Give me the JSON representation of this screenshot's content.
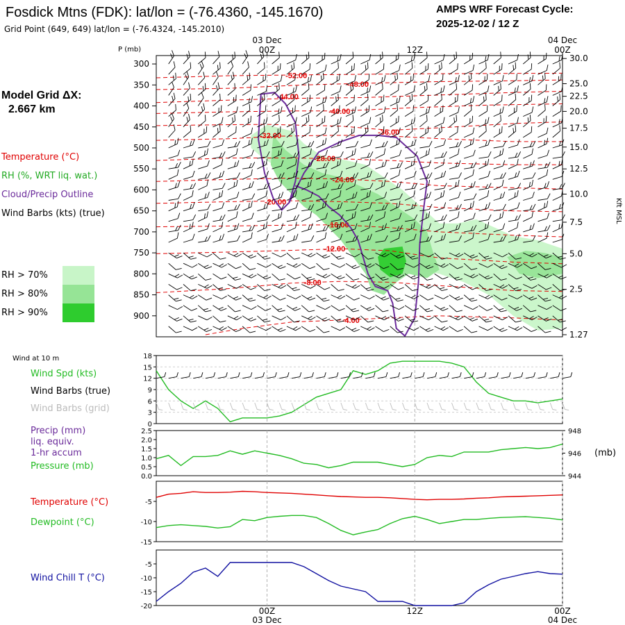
{
  "header": {
    "title": "Fosdick Mtns (FDK):  lat/lon = (-76.4360, -145.1670)",
    "grid_point": "Grid Point (649, 649) lat/lon = (-76.4324, -145.2010)",
    "cycle_line1": "AMPS WRF Forecast Cycle:",
    "cycle_line2": "2025-12-02 / 12  Z"
  },
  "legend": {
    "model_grid_line1": "Model Grid ΔX:",
    "model_grid_line2": "2.667 km",
    "temperature": "Temperature (°C)",
    "rh": "RH (%, WRT liq. wat.)",
    "cloud": "Cloud/Precip Outline",
    "wind_barbs": "Wind Barbs (kts) (true)",
    "rh70": "RH > 70%",
    "rh80": "RH > 80%",
    "rh90": "RH > 90%"
  },
  "colors": {
    "temperature": "#e00000",
    "rh_text": "#22aa22",
    "cloud": "#6a2a9a",
    "rh70": "#c8f5c8",
    "rh80": "#96e496",
    "rh90": "#2ecc2e",
    "wind": "#22bb22",
    "precip_label": "#6a2a9a",
    "pressure": "#22bb22",
    "dewpoint": "#22bb22",
    "windchill": "#1010a0",
    "grid_barbs": "#bbbbbb"
  },
  "time_axis": {
    "top_labels": [
      {
        "day": "03 Dec",
        "hour": "00Z"
      },
      {
        "day": "",
        "hour": "12Z"
      },
      {
        "day": "04 Dec",
        "hour": "00Z"
      }
    ],
    "bottom_labels": [
      {
        "hour": "00Z",
        "day": "03 Dec"
      },
      {
        "hour": "12Z",
        "day": ""
      },
      {
        "hour": "00Z",
        "day": "04 Dec"
      }
    ],
    "label_hours": [
      0,
      12,
      24
    ]
  },
  "chart_data": [
    {
      "type": "line",
      "name": "time-height cross section",
      "title": "Temperature, RH, cloud outline and wind barbs",
      "x_range_hours": [
        -9,
        24
      ],
      "ylabel": "P (mb)",
      "ylim": [
        950,
        280
      ],
      "y_ticks": [
        300,
        350,
        400,
        450,
        500,
        550,
        600,
        650,
        700,
        750,
        800,
        850,
        900
      ],
      "right_axis_label": "Kft MSL",
      "right_ticks": [
        "30.0",
        "25.0",
        "22.5",
        "20.0",
        "17.5",
        "15.0",
        "12.5",
        "10.0",
        "7.5",
        "5.0",
        "2.5",
        "1.27"
      ],
      "right_tick_pressures": [
        287,
        347,
        377,
        413,
        453,
        498,
        550,
        610,
        677,
        752,
        837,
        945
      ],
      "isotherm_labels": [
        {
          "text": "-52.00",
          "h": 1.5,
          "p": 327
        },
        {
          "text": "-48.00",
          "h": 6.5,
          "p": 348
        },
        {
          "text": "-44.00",
          "h": 0.8,
          "p": 378
        },
        {
          "text": "-40.00",
          "h": 5.0,
          "p": 412
        },
        {
          "text": "-36.00",
          "h": 9.0,
          "p": 462
        },
        {
          "text": "-32.00",
          "h": -0.6,
          "p": 470
        },
        {
          "text": "-28.00",
          "h": 3.8,
          "p": 525
        },
        {
          "text": "-24.00",
          "h": 5.3,
          "p": 575
        },
        {
          "text": "-20.00",
          "h": -0.2,
          "p": 628
        },
        {
          "text": "-16.00",
          "h": 4.9,
          "p": 683
        },
        {
          "text": "-12.00",
          "h": 4.6,
          "p": 740
        },
        {
          "text": "-8.00",
          "h": 3.0,
          "p": 820
        },
        {
          "text": "-4.00",
          "h": 6.1,
          "p": 910
        }
      ]
    },
    {
      "type": "line",
      "name": "10 m wind speed",
      "series_label": "Wind Spd (kts)",
      "barbs_label": "Wind Barbs (true)",
      "grid_barbs_label": "Wind Barbs (grid)",
      "panel_label": "Wind at 10 m",
      "ylim": [
        0,
        18
      ],
      "y_ticks": [
        0,
        3,
        6,
        9,
        12,
        15,
        18
      ],
      "x_hours": [
        -9,
        -8,
        -7,
        -6,
        -5,
        -4,
        -3,
        -2,
        -1,
        0,
        1,
        2,
        3,
        4,
        5,
        6,
        7,
        8,
        9,
        10,
        11,
        12,
        13,
        14,
        15,
        16,
        17,
        18,
        19,
        20,
        21,
        22,
        23,
        24
      ],
      "values": [
        14,
        9,
        6,
        4,
        6,
        4,
        0.5,
        1.5,
        1.5,
        1.5,
        2,
        3,
        5,
        7,
        8,
        9,
        14,
        13,
        14,
        16,
        16.5,
        16.5,
        16.5,
        16.5,
        16,
        15,
        11,
        8,
        7,
        6,
        6,
        5.5,
        6,
        6.5
      ]
    },
    {
      "type": "line",
      "name": "precip and pressure",
      "precip_label_lines": [
        "Precip (mm)",
        "liq. equiv.",
        "1-hr accum"
      ],
      "pressure_label": "Pressure (mb)",
      "precip_ylim": [
        0,
        2.5
      ],
      "precip_ticks": [
        "0.0",
        "0.5",
        "1.0",
        "1.5",
        "2.0",
        "2.5"
      ],
      "pressure_ylim": [
        944,
        948
      ],
      "pressure_ticks": [
        "944",
        "946",
        "948"
      ],
      "pressure_unit": "(mb)",
      "x_hours": [
        -9,
        -8,
        -7,
        -6,
        -5,
        -4,
        -3,
        -2,
        -1,
        0,
        1,
        2,
        3,
        4,
        5,
        6,
        7,
        8,
        9,
        10,
        11,
        12,
        13,
        14,
        15,
        16,
        17,
        18,
        19,
        20,
        21,
        22,
        23,
        24
      ],
      "pressure_values": [
        945.5,
        945.8,
        944.9,
        945.7,
        945.7,
        945.8,
        946.2,
        945.9,
        946.2,
        946.0,
        945.8,
        945.5,
        945.1,
        945.0,
        944.7,
        944.9,
        945.2,
        945.2,
        945.2,
        945.0,
        944.8,
        945.0,
        945.6,
        945.8,
        945.7,
        946.1,
        946.1,
        946.1,
        946.3,
        946.4,
        946.5,
        946.4,
        946.5,
        946.8
      ],
      "precip_values": [
        0,
        0,
        0,
        0,
        0,
        0,
        0,
        0,
        0,
        0,
        0,
        0,
        0,
        0,
        0,
        0,
        0,
        0,
        0,
        0,
        0,
        0,
        0,
        0,
        0,
        0,
        0,
        0,
        0,
        0,
        0,
        0,
        0,
        0
      ]
    },
    {
      "type": "line",
      "name": "temperature and dewpoint",
      "temp_label": "Temperature (°C)",
      "dew_label": "Dewpoint (°C)",
      "ylim": [
        -15,
        0
      ],
      "y_ticks": [
        -5,
        -10,
        -15
      ],
      "x_hours": [
        -9,
        -8,
        -7,
        -6,
        -5,
        -4,
        -3,
        -2,
        -1,
        0,
        1,
        2,
        3,
        4,
        5,
        6,
        7,
        8,
        9,
        10,
        11,
        12,
        13,
        14,
        15,
        16,
        17,
        18,
        19,
        20,
        21,
        22,
        23,
        24
      ],
      "temperature": [
        -4.0,
        -3.2,
        -3.0,
        -2.6,
        -2.8,
        -2.8,
        -2.7,
        -2.5,
        -2.6,
        -2.8,
        -2.9,
        -3.0,
        -3.2,
        -3.4,
        -3.6,
        -3.8,
        -3.9,
        -4.0,
        -4.0,
        -4.1,
        -4.3,
        -4.5,
        -4.6,
        -4.5,
        -4.5,
        -4.4,
        -4.2,
        -4.1,
        -3.9,
        -3.8,
        -3.7,
        -3.6,
        -3.5,
        -3.4
      ],
      "dewpoint": [
        -11.5,
        -11.0,
        -10.8,
        -11.0,
        -11.2,
        -11.6,
        -11.3,
        -9.5,
        -9.8,
        -9.0,
        -8.7,
        -8.5,
        -8.5,
        -9.0,
        -10.5,
        -12.2,
        -13.3,
        -12.6,
        -12.0,
        -10.5,
        -9.3,
        -8.7,
        -9.5,
        -10.5,
        -10.0,
        -9.5,
        -9.5,
        -9.2,
        -9.0,
        -8.9,
        -8.8,
        -9.0,
        -9.2,
        -9.6
      ]
    },
    {
      "type": "line",
      "name": "wind chill",
      "label": "Wind Chill T (°C)",
      "ylim": [
        -20,
        0
      ],
      "y_ticks": [
        -5,
        -10,
        -15,
        -20
      ],
      "x_hours": [
        -9,
        -8,
        -7,
        -6,
        -5,
        -4,
        -3,
        -2,
        -1,
        0,
        1,
        2,
        3,
        4,
        5,
        6,
        7,
        8,
        9,
        10,
        11,
        12,
        13,
        14,
        15,
        16,
        17,
        18,
        19,
        20,
        21,
        22,
        23,
        24
      ],
      "values": [
        -18.5,
        -15,
        -12,
        -8,
        -6.5,
        -9.5,
        -4.5,
        -4.5,
        -4.5,
        -4.5,
        -4.5,
        -4.5,
        -6,
        -8.5,
        -11,
        -13,
        -14,
        -15,
        -18.5,
        -18.5,
        -18.5,
        -20,
        -20,
        -20,
        -20,
        -19,
        -15,
        -12.5,
        -10.5,
        -9.5,
        -8.5,
        -7.8,
        -8.5,
        -8.7
      ]
    }
  ]
}
